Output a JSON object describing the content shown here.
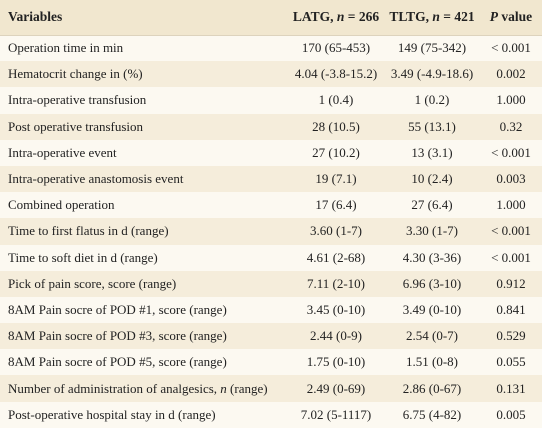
{
  "header": {
    "variables": "Variables",
    "latg_prefix": "LATG, ",
    "latg_n": "n",
    "latg_suffix": " = 266",
    "tltg_prefix": "TLTG, ",
    "tltg_n": "n",
    "tltg_suffix": " = 421",
    "p_italic": "P",
    "p_suffix": " value"
  },
  "rows": [
    {
      "variable": "Operation time in min",
      "latg": "170 (65-453)",
      "tltg": "149 (75-342)",
      "p": "< 0.001"
    },
    {
      "variable": "Hematocrit change in (%)",
      "latg": "4.04 (-3.8-15.2)",
      "tltg": "3.49 (-4.9-18.6)",
      "p": "0.002"
    },
    {
      "variable": "Intra-operative transfusion",
      "latg": "1 (0.4)",
      "tltg": "1 (0.2)",
      "p": "1.000"
    },
    {
      "variable": "Post operative transfusion",
      "latg": "28 (10.5)",
      "tltg": "55 (13.1)",
      "p": "0.32"
    },
    {
      "variable": "Intra-operative event",
      "latg": "27 (10.2)",
      "tltg": "13 (3.1)",
      "p": "< 0.001"
    },
    {
      "variable": "Intra-operative anastomosis event",
      "latg": "19 (7.1)",
      "tltg": "10 (2.4)",
      "p": "0.003"
    },
    {
      "variable": "Combined operation",
      "latg": "17 (6.4)",
      "tltg": "27 (6.4)",
      "p": "1.000"
    },
    {
      "variable": "Time to first flatus in d (range)",
      "latg": "3.60 (1-7)",
      "tltg": "3.30 (1-7)",
      "p": "< 0.001"
    },
    {
      "variable": "Time to soft diet in d (range)",
      "latg": "4.61 (2-68)",
      "tltg": "4.30 (3-36)",
      "p": "< 0.001"
    },
    {
      "variable": "Pick of pain score, score (range)",
      "latg": "7.11 (2-10)",
      "tltg": "6.96 (3-10)",
      "p": "0.912"
    },
    {
      "variable": "8AM Pain socre of POD #1, score (range)",
      "latg": "3.45 (0-10)",
      "tltg": "3.49 (0-10)",
      "p": "0.841"
    },
    {
      "variable": "8AM Pain socre of POD #3, score (range)",
      "latg": "2.44 (0-9)",
      "tltg": "2.54 (0-7)",
      "p": "0.529"
    },
    {
      "variable": "8AM Pain socre of POD #5, score (range)",
      "latg": "1.75 (0-10)",
      "tltg": "1.51 (0-8)",
      "p": "0.055"
    },
    {
      "variable_prefix": "Number of administration of analgesics, ",
      "variable_italic": "n",
      "variable_suffix": " (range)",
      "latg": "2.49 (0-69)",
      "tltg": "2.86 (0-67)",
      "p": "0.131"
    },
    {
      "variable": "Post-operative hospital stay in d (range)",
      "latg": "7.02 (5-1117)",
      "tltg": "6.75 (4-82)",
      "p": "0.005"
    }
  ]
}
